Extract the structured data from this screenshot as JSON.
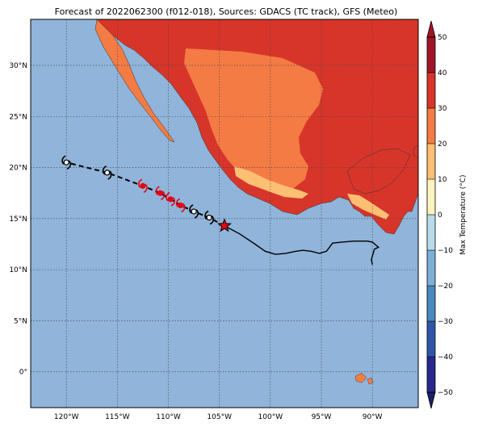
{
  "title": "Forecast of 2022062300 (f012-018), Sources: GDACS (TC track), GFS (Meteo)",
  "map": {
    "lon_range": [
      -123.5,
      -85.5
    ],
    "lat_range": [
      -3.5,
      34.5
    ],
    "lon_ticks": [
      -120,
      -115,
      -110,
      -105,
      -100,
      -95,
      -90
    ],
    "lon_tick_labels": [
      "120°W",
      "115°W",
      "110°W",
      "105°W",
      "100°W",
      "95°W",
      "90°W"
    ],
    "lat_ticks": [
      0,
      5,
      10,
      15,
      20,
      25,
      30
    ],
    "lat_tick_labels": [
      "0°",
      "5°N",
      "10°N",
      "15°N",
      "20°N",
      "25°N",
      "30°N"
    ],
    "grid": true,
    "ocean_color": "#90b4da"
  },
  "colorbar": {
    "label": "Max Temperature (°C)",
    "ticks": [
      -50,
      -40,
      -30,
      -20,
      -10,
      0,
      10,
      20,
      30,
      40,
      50
    ],
    "tick_labels": [
      "−50",
      "−40",
      "−30",
      "−20",
      "−10",
      "0",
      "10",
      "20",
      "30",
      "40",
      "50"
    ],
    "colors": [
      "#26288c",
      "#2f56a6",
      "#4a87bf",
      "#7cb0d6",
      "#b9dbea",
      "#eaf5f6",
      "#fdf3c0",
      "#fdbf74",
      "#f47b44",
      "#d7352a",
      "#a01628"
    ]
  },
  "track": {
    "past": [
      [
        -104.5,
        14.3
      ],
      [
        -103,
        13.5
      ],
      [
        -101.5,
        12.5
      ],
      [
        -100.5,
        11.8
      ],
      [
        -99.5,
        11.5
      ],
      [
        -98.5,
        11.6
      ],
      [
        -97.5,
        11.8
      ],
      [
        -96.8,
        11.9
      ],
      [
        -96,
        11.8
      ],
      [
        -95.2,
        11.6
      ],
      [
        -94.5,
        11.8
      ],
      [
        -93.9,
        12.6
      ],
      [
        -93,
        12.7
      ],
      [
        -91.8,
        12.8
      ],
      [
        -90.5,
        12.8
      ],
      [
        -90,
        12.7
      ],
      [
        -89.4,
        12.2
      ],
      [
        -89.8,
        12.0
      ],
      [
        -90.1,
        11.0
      ],
      [
        -90.0,
        10.5
      ]
    ],
    "current": [
      -104.5,
      14.3
    ],
    "forecast": [
      [
        -104.5,
        14.3
      ],
      [
        -106,
        15.1
      ],
      [
        -107.5,
        15.7
      ],
      [
        -108.8,
        16.3
      ],
      [
        -109.8,
        16.9
      ],
      [
        -110.8,
        17.5
      ],
      [
        -112.5,
        18.2
      ],
      [
        -116,
        19.5
      ],
      [
        -120,
        20.5
      ]
    ],
    "forecast_symbols": [
      {
        "lon": -106,
        "lat": 15.1,
        "color": "black"
      },
      {
        "lon": -107.5,
        "lat": 15.7,
        "color": "black"
      },
      {
        "lon": -108.8,
        "lat": 16.3,
        "color": "red"
      },
      {
        "lon": -109.8,
        "lat": 16.9,
        "color": "red"
      },
      {
        "lon": -110.8,
        "lat": 17.5,
        "color": "red"
      },
      {
        "lon": -112.5,
        "lat": 18.2,
        "color": "red"
      },
      {
        "lon": -116,
        "lat": 19.5,
        "color": "black"
      },
      {
        "lon": -120,
        "lat": 20.5,
        "color": "black"
      }
    ]
  }
}
